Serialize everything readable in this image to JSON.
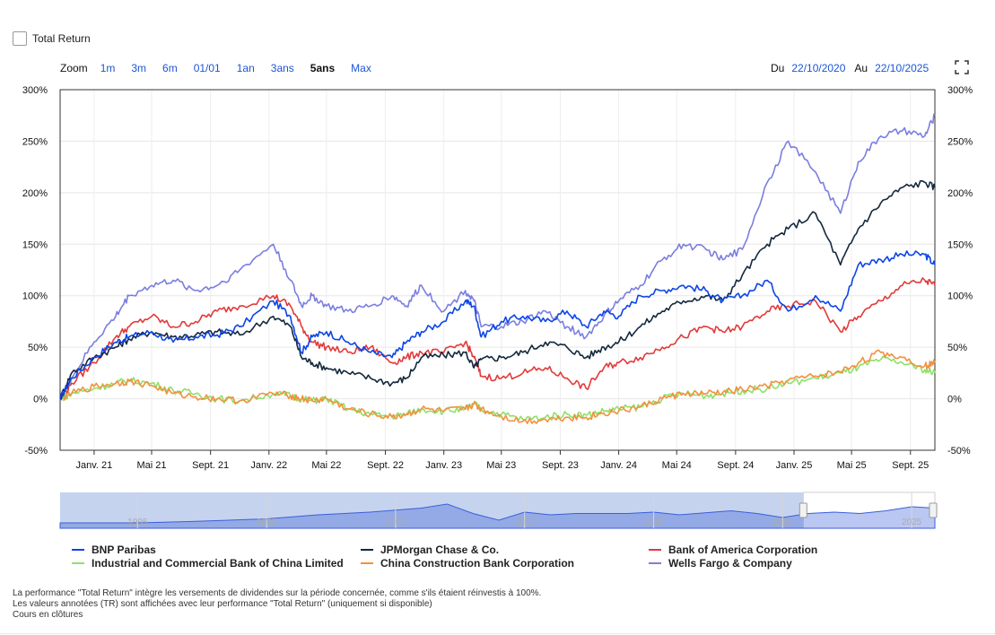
{
  "total_return_label": "Total Return",
  "zoom": {
    "label": "Zoom",
    "buttons": [
      "1m",
      "3m",
      "6m",
      "01/01",
      "1an",
      "3ans",
      "5ans",
      "Max"
    ],
    "active": "5ans"
  },
  "date_range": {
    "from_label": "Du",
    "from_value": "22/10/2020",
    "to_label": "Au",
    "to_value": "22/10/2025"
  },
  "colors": {
    "bnp": "#0b45e6",
    "jpm": "#14283d",
    "bac": "#e23a3a",
    "icbc": "#8ee06a",
    "ccb": "#f2913d",
    "wfc": "#7b7ee0",
    "navigator_fill": "#c5d3ef",
    "navigator_line": "#3a5fd9"
  },
  "chart_data": {
    "type": "line",
    "y_unit": "%",
    "ylim": [
      -50,
      300
    ],
    "y_ticks": [
      "300%",
      "250%",
      "200%",
      "150%",
      "100%",
      "50%",
      "0%",
      "-50%"
    ],
    "x_ticks": [
      "Janv. 21",
      "Mai 21",
      "Sept. 21",
      "Janv. 22",
      "Mai 22",
      "Sept. 22",
      "Janv. 23",
      "Mai 23",
      "Sept. 23",
      "Janv. 24",
      "Mai 24",
      "Sept. 24",
      "Janv. 25",
      "Mai 25",
      "Sept. 25"
    ],
    "x_dates": [
      "2020-10-22",
      "2020-11-15",
      "2021-01-01",
      "2021-02-15",
      "2021-03-15",
      "2021-05-01",
      "2021-06-15",
      "2021-08-01",
      "2021-09-15",
      "2021-11-01",
      "2022-01-10",
      "2022-02-15",
      "2022-03-10",
      "2022-04-01",
      "2022-05-01",
      "2022-06-15",
      "2022-08-01",
      "2022-09-15",
      "2022-10-15",
      "2022-11-15",
      "2023-01-01",
      "2023-02-15",
      "2023-03-05",
      "2023-03-20",
      "2023-05-01",
      "2023-06-15",
      "2023-08-01",
      "2023-09-15",
      "2023-10-25",
      "2023-12-01",
      "2024-01-01",
      "2024-02-15",
      "2024-04-01",
      "2024-05-15",
      "2024-07-01",
      "2024-08-05",
      "2024-09-15",
      "2024-11-06",
      "2024-12-20",
      "2025-02-15",
      "2025-04-08",
      "2025-05-15",
      "2025-07-01",
      "2025-08-15",
      "2025-10-01",
      "2025-10-22"
    ],
    "series": [
      {
        "name": "BNP Paribas",
        "color_key": "bnp",
        "values": [
          0,
          20,
          40,
          55,
          60,
          65,
          55,
          60,
          62,
          70,
          95,
          80,
          45,
          60,
          65,
          55,
          45,
          40,
          55,
          65,
          75,
          95,
          90,
          60,
          75,
          80,
          75,
          85,
          70,
          85,
          80,
          100,
          105,
          110,
          105,
          95,
          100,
          115,
          85,
          100,
          85,
          130,
          135,
          140,
          140,
          130
        ]
      },
      {
        "name": "JPMorgan Chase & Co.",
        "color_key": "jpm",
        "values": [
          0,
          25,
          40,
          50,
          58,
          65,
          60,
          62,
          65,
          62,
          80,
          70,
          40,
          35,
          30,
          25,
          20,
          15,
          20,
          40,
          42,
          45,
          30,
          38,
          40,
          45,
          55,
          50,
          40,
          50,
          55,
          70,
          85,
          95,
          100,
          95,
          120,
          150,
          165,
          180,
          130,
          165,
          190,
          205,
          210,
          205
        ]
      },
      {
        "name": "Bank of America Corporation",
        "color_key": "bac",
        "values": [
          0,
          15,
          35,
          60,
          70,
          80,
          70,
          75,
          85,
          90,
          100,
          90,
          70,
          55,
          50,
          45,
          50,
          35,
          40,
          45,
          45,
          55,
          40,
          22,
          20,
          25,
          30,
          20,
          10,
          30,
          35,
          40,
          50,
          60,
          70,
          65,
          70,
          85,
          90,
          95,
          65,
          80,
          95,
          110,
          115,
          110
        ]
      },
      {
        "name": "Industrial and Commercial Bank of China Limited",
        "color_key": "icbc",
        "values": [
          0,
          5,
          10,
          15,
          18,
          15,
          8,
          5,
          0,
          -2,
          5,
          3,
          0,
          -2,
          0,
          -10,
          -15,
          -17,
          -15,
          -10,
          -12,
          -10,
          -5,
          -10,
          -15,
          -20,
          -18,
          -15,
          -16,
          -12,
          -10,
          -8,
          0,
          5,
          3,
          5,
          8,
          10,
          15,
          20,
          25,
          30,
          38,
          35,
          28,
          25
        ]
      },
      {
        "name": "China Construction Bank Corporation",
        "color_key": "ccb",
        "values": [
          0,
          5,
          12,
          15,
          17,
          13,
          5,
          2,
          0,
          -2,
          5,
          3,
          0,
          -2,
          0,
          -10,
          -15,
          -18,
          -15,
          -10,
          -12,
          -10,
          -5,
          -10,
          -17,
          -22,
          -20,
          -18,
          -18,
          -14,
          -12,
          -8,
          0,
          5,
          5,
          6,
          9,
          12,
          18,
          22,
          26,
          35,
          45,
          40,
          32,
          35
        ]
      },
      {
        "name": "Wells Fargo & Company",
        "color_key": "wfc",
        "values": [
          0,
          20,
          55,
          80,
          100,
          110,
          115,
          105,
          110,
          125,
          150,
          115,
          90,
          100,
          90,
          85,
          90,
          100,
          90,
          110,
          85,
          105,
          95,
          70,
          70,
          75,
          85,
          70,
          60,
          80,
          95,
          110,
          135,
          150,
          145,
          135,
          145,
          210,
          250,
          220,
          180,
          230,
          255,
          260,
          255,
          275
        ]
      }
    ],
    "navigator": {
      "x_labels": [
        "1995",
        "2000",
        "2005",
        "2010",
        "2015",
        "2020",
        "2025"
      ]
    },
    "grid": true,
    "legend_position": "bottom"
  },
  "footnotes": [
    "La performance \"Total Return\" intègre les versements de dividendes sur la période concernée, comme s'ils étaient réinvestis à 100%.",
    "Les valeurs annotées (TR) sont affichées avec leur performance \"Total Return\" (uniquement si disponible)",
    "Cours en clôtures"
  ]
}
